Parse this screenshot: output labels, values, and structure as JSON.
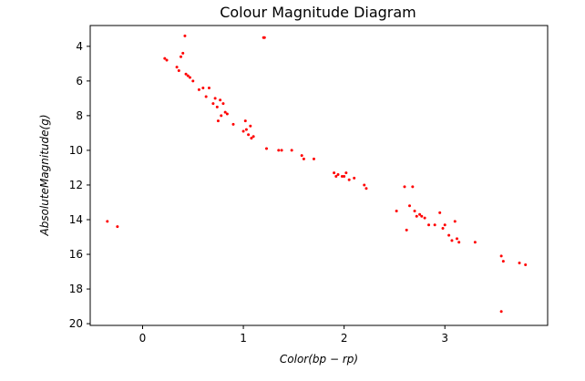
{
  "chart_data": {
    "type": "scatter",
    "title": "Colour Magnitude Diagram",
    "xlabel": "Color(bp − rp)",
    "ylabel": "AbsoluteMagnitude(g)",
    "xlim": [
      -0.52,
      4.02
    ],
    "ylim": [
      20.1,
      2.8
    ],
    "y_inverted": true,
    "x_ticks": [
      0,
      1,
      2,
      3
    ],
    "y_ticks": [
      4,
      6,
      8,
      10,
      12,
      14,
      16,
      18,
      20
    ],
    "grid": false,
    "marker_color": "#ff0000",
    "series": [
      {
        "points": [
          [
            -0.35,
            14.1
          ],
          [
            -0.25,
            14.4
          ],
          [
            0.22,
            4.7
          ],
          [
            0.24,
            4.8
          ],
          [
            0.34,
            5.2
          ],
          [
            0.36,
            5.4
          ],
          [
            0.38,
            4.6
          ],
          [
            0.4,
            4.4
          ],
          [
            0.42,
            3.4
          ],
          [
            0.43,
            5.6
          ],
          [
            0.45,
            5.7
          ],
          [
            0.47,
            5.8
          ],
          [
            0.5,
            6.0
          ],
          [
            0.56,
            6.5
          ],
          [
            0.6,
            6.4
          ],
          [
            0.63,
            6.9
          ],
          [
            0.66,
            6.4
          ],
          [
            0.7,
            7.3
          ],
          [
            0.72,
            7.0
          ],
          [
            0.74,
            7.5
          ],
          [
            0.75,
            8.3
          ],
          [
            0.77,
            7.1
          ],
          [
            0.78,
            8.0
          ],
          [
            0.8,
            7.3
          ],
          [
            0.82,
            7.8
          ],
          [
            0.84,
            7.9
          ],
          [
            0.9,
            8.5
          ],
          [
            1.0,
            8.9
          ],
          [
            1.02,
            8.3
          ],
          [
            1.03,
            8.8
          ],
          [
            1.05,
            9.1
          ],
          [
            1.07,
            8.6
          ],
          [
            1.08,
            9.3
          ],
          [
            1.1,
            9.2
          ],
          [
            1.2,
            3.5
          ],
          [
            1.21,
            3.5
          ],
          [
            1.23,
            9.9
          ],
          [
            1.35,
            10.0
          ],
          [
            1.38,
            10.0
          ],
          [
            1.48,
            10.0
          ],
          [
            1.58,
            10.3
          ],
          [
            1.6,
            10.5
          ],
          [
            1.7,
            10.5
          ],
          [
            1.9,
            11.3
          ],
          [
            1.92,
            11.5
          ],
          [
            1.94,
            11.4
          ],
          [
            1.98,
            11.5
          ],
          [
            2.0,
            11.5
          ],
          [
            2.02,
            11.3
          ],
          [
            2.05,
            11.7
          ],
          [
            2.1,
            11.6
          ],
          [
            2.2,
            12.0
          ],
          [
            2.22,
            12.2
          ],
          [
            2.52,
            13.5
          ],
          [
            2.6,
            12.1
          ],
          [
            2.62,
            14.6
          ],
          [
            2.65,
            13.2
          ],
          [
            2.68,
            12.1
          ],
          [
            2.7,
            13.5
          ],
          [
            2.72,
            13.8
          ],
          [
            2.75,
            13.7
          ],
          [
            2.77,
            13.8
          ],
          [
            2.8,
            13.9
          ],
          [
            2.84,
            14.3
          ],
          [
            2.9,
            14.3
          ],
          [
            2.95,
            13.6
          ],
          [
            2.98,
            14.5
          ],
          [
            3.0,
            14.3
          ],
          [
            3.04,
            14.9
          ],
          [
            3.07,
            15.2
          ],
          [
            3.1,
            14.1
          ],
          [
            3.12,
            15.1
          ],
          [
            3.14,
            15.3
          ],
          [
            3.3,
            15.3
          ],
          [
            3.56,
            16.1
          ],
          [
            3.58,
            16.4
          ],
          [
            3.56,
            19.3
          ],
          [
            3.74,
            16.5
          ],
          [
            3.8,
            16.6
          ]
        ]
      }
    ]
  }
}
